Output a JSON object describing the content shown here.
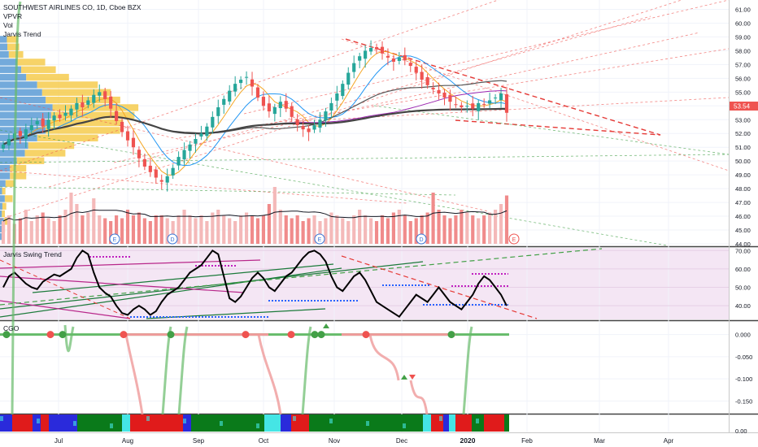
{
  "header": {
    "symbol_title": "SOUTHWEST AIRLINES CO, 1D, Cboe BZX",
    "indicators": [
      "VPVR",
      "Vol",
      "Jarvis Trend"
    ]
  },
  "price_badge": {
    "label": "53.54",
    "color": "#ef5350"
  },
  "time_axis": [
    "Jul",
    "Aug",
    "Sep",
    "Oct",
    "Nov",
    "Dec",
    "2020",
    "Feb",
    "Mar",
    "Apr"
  ],
  "earnings_marks": [
    "E",
    "D",
    "E",
    "D",
    "E"
  ],
  "colors": {
    "up": "#26a69a",
    "down": "#ef5350",
    "volume_up": "#f4b9b9",
    "volume_down": "#f08b8b",
    "accent": "#2962ff"
  },
  "chart_data": [
    {
      "type": "candlestick",
      "title": "SOUTHWEST AIRLINES CO, 1D, Cboe BZX",
      "ylim": [
        44.0,
        61.5
      ],
      "yticks": [
        "61.00",
        "60.00",
        "59.00",
        "58.00",
        "57.00",
        "56.00",
        "55.00",
        "54.00",
        "53.00",
        "52.00",
        "51.00",
        "50.00",
        "49.00",
        "48.00",
        "47.00",
        "46.00",
        "45.00",
        "44.00"
      ],
      "x_month_labels": [
        "Jul",
        "Aug",
        "Sep",
        "Oct",
        "Nov",
        "Dec",
        "2020",
        "Feb",
        "Mar",
        "Apr"
      ],
      "close_path": [
        51.2,
        51.6,
        52.0,
        51.8,
        52.3,
        52.6,
        52.9,
        52.5,
        53.0,
        53.3,
        53.1,
        53.5,
        53.8,
        54.2,
        53.9,
        54.4,
        54.8,
        55.0,
        54.5,
        53.8,
        52.9,
        52.1,
        51.5,
        51.0,
        50.2,
        49.6,
        49.2,
        48.8,
        48.5,
        48.9,
        49.5,
        50.3,
        50.8,
        51.2,
        51.6,
        52.0,
        52.5,
        53.2,
        53.9,
        54.5,
        55.1,
        55.6,
        55.9,
        56.1,
        55.4,
        54.6,
        54.0,
        53.6,
        53.9,
        54.3,
        53.8,
        53.2,
        52.6,
        52.3,
        52.1,
        52.6,
        53.0,
        53.6,
        54.2,
        54.9,
        55.6,
        56.4,
        57.1,
        57.6,
        58.0,
        58.2,
        58.1,
        57.8,
        57.5,
        57.2,
        57.5,
        57.3,
        56.9,
        56.4,
        55.9,
        55.5,
        55.2,
        54.9,
        54.6,
        54.3,
        54.1,
        53.9,
        54.0,
        53.8,
        54.2,
        54.1,
        54.4,
        54.6,
        54.9,
        53.5
      ],
      "volume_relative": [
        0.4,
        0.5,
        0.35,
        0.45,
        0.6,
        0.4,
        0.5,
        0.55,
        0.45,
        0.4,
        0.5,
        0.6,
        0.9,
        0.7,
        0.5,
        0.55,
        0.8,
        0.5,
        0.45,
        0.4,
        0.5,
        0.45,
        0.6,
        0.5,
        0.55,
        0.45,
        0.4,
        0.5,
        0.5,
        0.45,
        0.4,
        0.5,
        0.6,
        0.5,
        0.45,
        0.5,
        0.4,
        0.55,
        0.6,
        0.5,
        0.45,
        0.4,
        0.5,
        0.55,
        0.5,
        0.45,
        0.5,
        0.7,
        1.0,
        0.6,
        0.5,
        0.45,
        0.5,
        0.4,
        0.45,
        0.5,
        0.4,
        0.45,
        0.55,
        0.5,
        0.45,
        0.4,
        0.5,
        0.6,
        0.5,
        0.45,
        0.4,
        0.5,
        0.45,
        0.55,
        0.6,
        0.5,
        0.4,
        0.45,
        0.5,
        0.55,
        0.9,
        0.6,
        0.5,
        0.45,
        0.5,
        0.6,
        0.55,
        0.5,
        0.45,
        0.5,
        0.55,
        0.6,
        0.7,
        0.85
      ],
      "last_price": 53.54
    },
    {
      "type": "line",
      "title": "Jarvis Swing Trend",
      "ylim": [
        33,
        71
      ],
      "yticks": [
        "70.00",
        "60.00",
        "50.00",
        "40.00"
      ],
      "values": [
        50,
        56,
        58,
        55,
        52,
        50,
        49,
        53,
        55,
        57,
        56,
        58,
        60,
        66,
        70,
        68,
        58,
        50,
        47,
        45,
        40,
        36,
        35,
        38,
        40,
        38,
        35,
        37,
        42,
        46,
        48,
        50,
        54,
        58,
        60,
        62,
        66,
        70,
        68,
        56,
        44,
        42,
        45,
        50,
        55,
        58,
        55,
        50,
        48,
        52,
        56,
        58,
        62,
        66,
        69,
        70,
        68,
        64,
        56,
        50,
        48,
        52,
        56,
        58,
        54,
        48,
        42,
        40,
        38,
        36,
        34,
        38,
        42,
        46,
        44,
        42,
        46,
        50,
        46,
        42,
        40,
        38,
        42,
        46,
        52,
        56,
        54,
        50,
        46,
        40
      ]
    },
    {
      "type": "line",
      "title": "CGO",
      "ylim": [
        -0.175,
        0.025
      ],
      "yticks": [
        "0.000",
        "-0.050",
        "-0.100",
        "-0.150"
      ]
    },
    {
      "type": "heatmap",
      "title": "",
      "yticks": [
        "0.00"
      ]
    }
  ]
}
